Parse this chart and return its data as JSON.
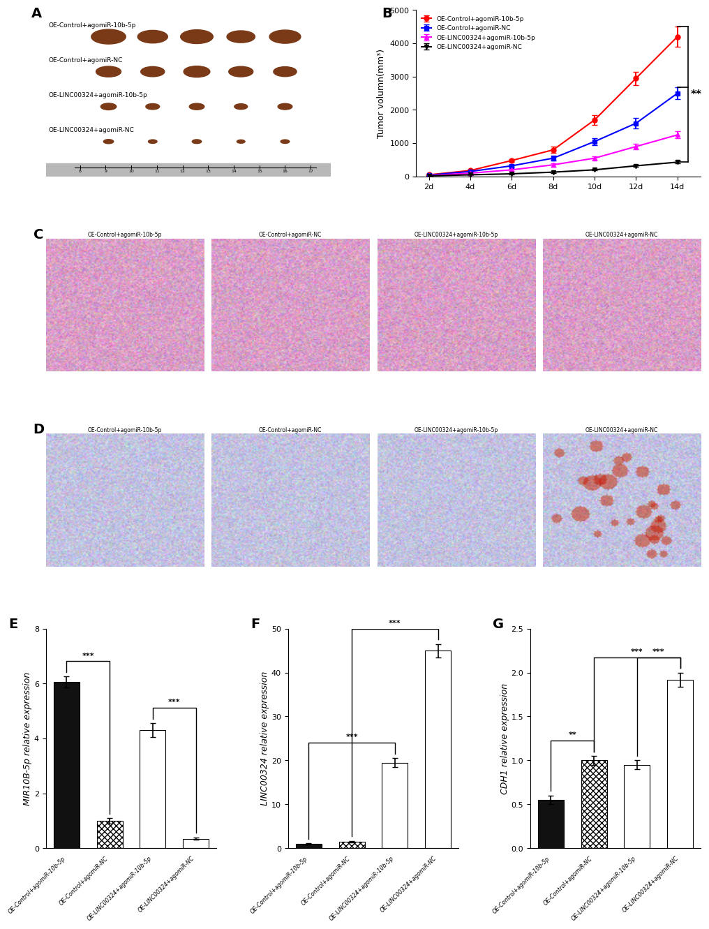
{
  "panel_B": {
    "timepoints": [
      2,
      4,
      6,
      8,
      10,
      12,
      14
    ],
    "series": {
      "OE-Control+agomiR-10b-5p": {
        "values": [
          50,
          180,
          480,
          800,
          1700,
          2950,
          4200
        ],
        "errors": [
          20,
          30,
          50,
          100,
          150,
          200,
          300
        ],
        "color": "#FF0000",
        "marker": "o",
        "linestyle": "-"
      },
      "OE-Control+agomiR-NC": {
        "values": [
          40,
          150,
          320,
          550,
          1050,
          1600,
          2500
        ],
        "errors": [
          15,
          25,
          40,
          80,
          100,
          150,
          180
        ],
        "color": "#0000FF",
        "marker": "s",
        "linestyle": "-"
      },
      "OE-LINC00324+agomiR-10b-5p": {
        "values": [
          30,
          100,
          200,
          350,
          550,
          900,
          1250
        ],
        "errors": [
          10,
          20,
          30,
          50,
          60,
          80,
          100
        ],
        "color": "#FF00FF",
        "marker": "^",
        "linestyle": "-"
      },
      "OE-LINC00324+agomiR-NC": {
        "values": [
          20,
          50,
          80,
          130,
          200,
          320,
          430
        ],
        "errors": [
          5,
          10,
          15,
          20,
          25,
          30,
          40
        ],
        "color": "#000000",
        "marker": "v",
        "linestyle": "-"
      }
    },
    "ylabel": "Tumor volumn(mm³)",
    "ylim": [
      0,
      5000
    ],
    "yticks": [
      0,
      1000,
      2000,
      3000,
      4000,
      5000
    ],
    "xtick_labels": [
      "2d",
      "4d",
      "6d",
      "8d",
      "10d",
      "12d",
      "14d"
    ],
    "significance": "**"
  },
  "panel_E": {
    "categories": [
      "OE-Control+agomiR-10b-5p",
      "OE-Control+agomiR-NC",
      "OE-LINC00324+agomiR-10b-5p",
      "OE-LINC00324+agomiR-NC"
    ],
    "values": [
      6.05,
      1.0,
      4.3,
      0.35
    ],
    "errors": [
      0.2,
      0.1,
      0.25,
      0.05
    ],
    "ylabel": "MIR10B-5p relative expression",
    "ylim": [
      0,
      8
    ],
    "yticks": [
      0,
      2,
      4,
      6,
      8
    ],
    "sig_pairs": [
      [
        0,
        1,
        "***"
      ],
      [
        2,
        3,
        "***"
      ]
    ]
  },
  "panel_F": {
    "categories": [
      "OE-Control+agomiR-10b-5p",
      "OE-Control+agomiR-NC",
      "OE-LINC00324+agomiR-10b-5p",
      "OE-LINC00324+agomiR-NC"
    ],
    "values": [
      1.0,
      1.5,
      19.5,
      45.0
    ],
    "errors": [
      0.15,
      0.2,
      1.0,
      1.5
    ],
    "ylabel": "LINC00324 relative expression",
    "ylim": [
      0,
      50
    ],
    "yticks": [
      0,
      10,
      20,
      30,
      40,
      50
    ],
    "sig_pairs": [
      [
        0,
        2,
        "***"
      ],
      [
        1,
        3,
        "***"
      ]
    ]
  },
  "panel_G": {
    "categories": [
      "OE-Control+agomiR-10b-5p",
      "OE-Control+agomiR-NC",
      "OE-LINC00324+agomiR-10b-5p",
      "OE-LINC00324+agomiR-NC"
    ],
    "values": [
      0.55,
      1.0,
      0.95,
      1.92
    ],
    "errors": [
      0.05,
      0.05,
      0.05,
      0.08
    ],
    "ylabel": "CDH1 relative expression",
    "ylim": [
      0,
      2.5
    ],
    "yticks": [
      0.0,
      0.5,
      1.0,
      1.5,
      2.0,
      2.5
    ],
    "sig_pairs": [
      [
        0,
        1,
        "**"
      ],
      [
        1,
        3,
        "***"
      ],
      [
        2,
        3,
        "***"
      ]
    ]
  },
  "label_fontsize": 14,
  "axis_fontsize": 9,
  "tick_fontsize": 8,
  "bar_width": 0.6,
  "panel_A_labels": [
    "OE-Control+agomiR-10b-5p",
    "OE-Control+agomiR-NC",
    "OE-LINC00324+agomiR-10b-5p",
    "OE-LINC00324+agomiR-NC"
  ],
  "panel_CD_titles": [
    "OE-Control+agomiR-10b-5p",
    "OE-Control+agomiR-NC",
    "OE-LINC00324+agomiR-10b-5p",
    "OE-LINC00324+agomiR-NC"
  ]
}
